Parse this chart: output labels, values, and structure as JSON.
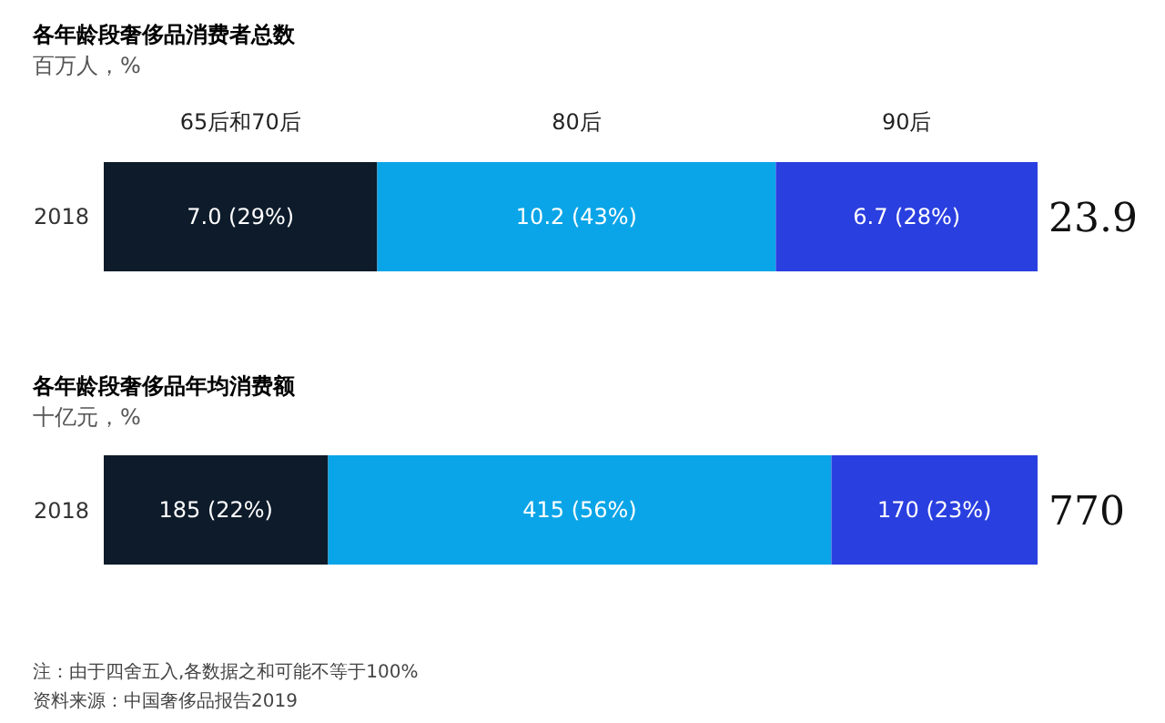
{
  "chart_data": [
    {
      "type": "bar",
      "orientation": "horizontal",
      "stacked": true,
      "title": "各年龄段奢侈品消费者总数",
      "subtitle": "百万人，%",
      "categories": [
        "2018"
      ],
      "legend": false,
      "totals": [
        "23.9"
      ],
      "series": [
        {
          "name": "65后和70后",
          "color": "#0d1b2a",
          "values": [
            7.0
          ],
          "value_labels": [
            "7.0 (29%)"
          ]
        },
        {
          "name": "80后",
          "color": "#0aa5e8",
          "values": [
            10.2
          ],
          "value_labels": [
            "10.2 (43%)"
          ]
        },
        {
          "name": "90后",
          "color": "#2a3fe0",
          "values": [
            6.7
          ],
          "value_labels": [
            "6.7 (28%)"
          ]
        }
      ]
    },
    {
      "type": "bar",
      "orientation": "horizontal",
      "stacked": true,
      "title": "各年龄段奢侈品年均消费额",
      "subtitle": "十亿元，%",
      "categories": [
        "2018"
      ],
      "legend": false,
      "totals": [
        "770"
      ],
      "series": [
        {
          "color": "#0d1b2a",
          "values": [
            185
          ],
          "value_labels": [
            "185 (22%)"
          ]
        },
        {
          "color": "#0aa5e8",
          "values": [
            415
          ],
          "value_labels": [
            "415 (56%)"
          ]
        },
        {
          "color": "#2a3fe0",
          "values": [
            170
          ],
          "value_labels": [
            "170 (23%)"
          ]
        }
      ],
      "annotations": [
        "注：由于四舍五入,各数据之和可能不等于100%",
        "资料来源：中国奢侈品报告2019"
      ]
    }
  ]
}
